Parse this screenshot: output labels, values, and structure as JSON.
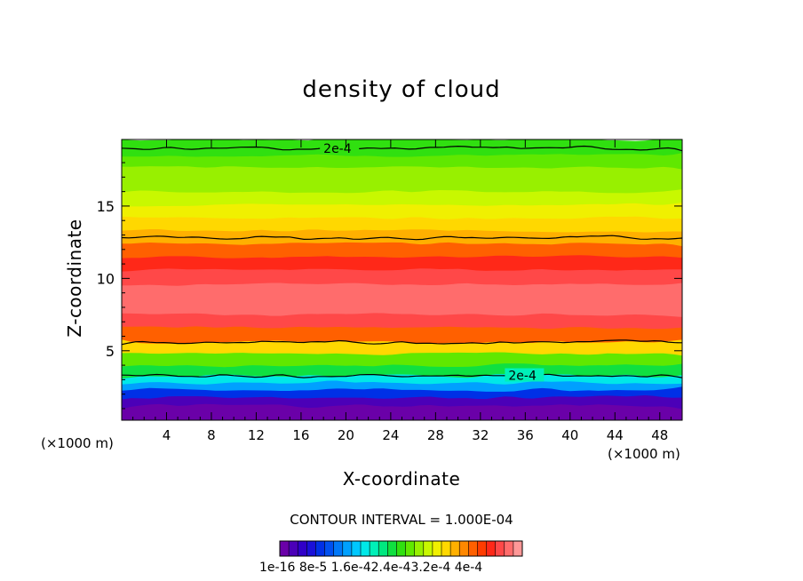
{
  "chart_data": {
    "type": "heatmap",
    "title": "density of cloud",
    "xlabel": "X-coordinate",
    "ylabel": "Z-coordinate",
    "x_unit_left": "(×1000 m)",
    "x_unit_right": "(×1000 m)",
    "xlim": [
      0,
      50
    ],
    "ylim": [
      0.2,
      19.6
    ],
    "xticks": [
      4,
      8,
      12,
      16,
      20,
      24,
      28,
      32,
      36,
      40,
      44,
      48
    ],
    "yticks": [
      5,
      10,
      15
    ],
    "contour_interval_text": "CONTOUR INTERVAL = 1.000E-04",
    "colorbar_tick_labels": "1e-16  8e-5  1.6e-42.4e-43.2e-4  4e-4",
    "colorbar_colors": [
      "#6a00a8",
      "#4b00b8",
      "#3000c8",
      "#1a10d8",
      "#0030e6",
      "#0050f0",
      "#0078f8",
      "#00a0ff",
      "#00c8ff",
      "#00e8e8",
      "#00f0b8",
      "#00e880",
      "#10e040",
      "#30e010",
      "#60e800",
      "#98f000",
      "#c8f800",
      "#f0f000",
      "#ffd800",
      "#ffb000",
      "#ff8800",
      "#ff6000",
      "#ff3c00",
      "#ff2818",
      "#ff4848",
      "#ff6c6c",
      "#ff9898"
    ],
    "profile_z": [
      0.2,
      1.2,
      1.8,
      2.3,
      2.8,
      3.3,
      4.0,
      4.8,
      5.6,
      6.6,
      7.5,
      8.5,
      9.6,
      10.6,
      11.5,
      12.4,
      13.3,
      14.2,
      15.1,
      16.0,
      16.9,
      17.7,
      18.5,
      19.2,
      19.6
    ],
    "profile_density": [
      0,
      1e-16,
      4e-05,
      8e-05,
      0.00012,
      0.00016,
      0.0002,
      0.00024,
      0.0003,
      0.00036,
      0.00039,
      0.00039,
      0.00038,
      0.00036,
      0.00034,
      0.00031,
      0.000285,
      0.00027,
      0.000255,
      0.00024,
      0.00023,
      0.00022,
      0.00021,
      0.0002,
      0.000195
    ],
    "contour_label": "2e-4",
    "contour_lines": [
      {
        "level": "2e-4",
        "z": 19.0,
        "label": "2e-4",
        "label_x": 18
      },
      {
        "level": "3e-4",
        "z": 12.8
      },
      {
        "level": "3e-4",
        "z": 5.6
      },
      {
        "level": "2e-4",
        "z": 3.3,
        "label": "2e-4",
        "label_x": 34.5
      }
    ],
    "grid": false
  }
}
